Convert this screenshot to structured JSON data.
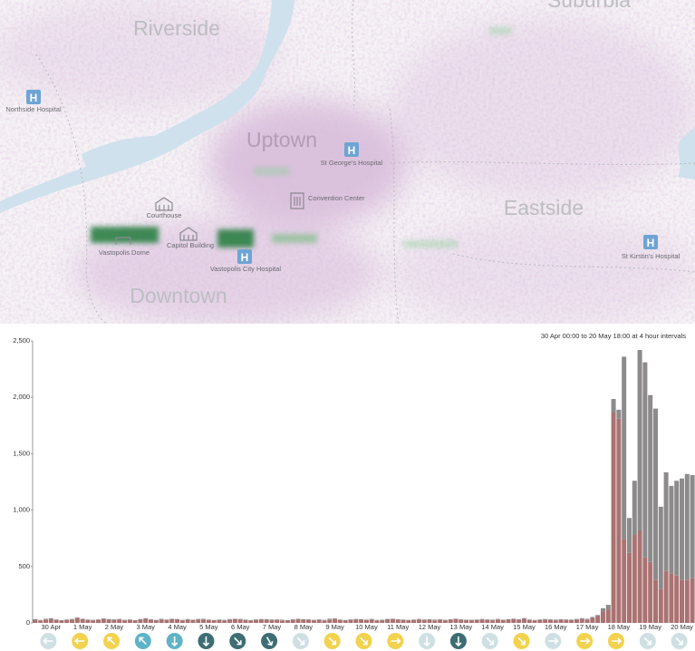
{
  "map": {
    "districts": [
      "Suburbia",
      "Riverside",
      "Uptown",
      "Eastside",
      "Downtown"
    ],
    "places": [
      "Northside Hospital",
      "St George's Hospital",
      "Convention Center",
      "Courthouse",
      "Vastopolis Dome",
      "Capitol Building",
      "Vastopolis City Hospital",
      "St Kirstin's Hospital"
    ]
  },
  "chart_data": {
    "type": "bar",
    "stacked": true,
    "annotation": "30 Apr 00:00 to 20 May 18:00 at 4 hour intervals",
    "categories": [
      null,
      null,
      null,
      "30 Apr",
      null,
      null,
      null,
      null,
      null,
      "1 May",
      null,
      null,
      null,
      null,
      null,
      "2 May",
      null,
      null,
      null,
      null,
      null,
      "3 May",
      null,
      null,
      null,
      null,
      null,
      "4 May",
      null,
      null,
      null,
      null,
      null,
      "5 May",
      null,
      null,
      null,
      null,
      null,
      "6 May",
      null,
      null,
      null,
      null,
      null,
      "7 May",
      null,
      null,
      null,
      null,
      null,
      "8 May",
      null,
      null,
      null,
      null,
      null,
      "9 May",
      null,
      null,
      null,
      null,
      null,
      "10 May",
      null,
      null,
      null,
      null,
      null,
      "11 May",
      null,
      null,
      null,
      null,
      null,
      "12 May",
      null,
      null,
      null,
      null,
      null,
      "13 May",
      null,
      null,
      null,
      null,
      null,
      "14 May",
      null,
      null,
      null,
      null,
      null,
      "15 May",
      null,
      null,
      null,
      null,
      null,
      "16 May",
      null,
      null,
      null,
      null,
      null,
      "17 May",
      null,
      null,
      null,
      null,
      null,
      "18 May",
      null,
      null,
      null,
      null,
      null,
      "19 May",
      null,
      null,
      null,
      null,
      null,
      "20 May",
      null,
      null
    ],
    "series": [
      {
        "color": "#aa7272",
        "values": [
          28,
          22,
          30,
          35,
          26,
          20,
          24,
          30,
          42,
          33,
          25,
          21,
          27,
          34,
          29,
          24,
          31,
          22,
          26,
          20,
          28,
          36,
          25,
          23,
          30,
          25,
          33,
          28,
          22,
          27,
          24,
          29,
          31,
          26,
          20,
          25,
          22,
          27,
          33,
          29,
          24,
          21,
          25,
          30,
          28,
          23,
          27,
          22,
          20,
          26,
          32,
          28,
          24,
          23,
          27,
          22,
          30,
          34,
          26,
          21,
          25,
          31,
          28,
          24,
          29,
          22,
          23,
          28,
          33,
          27,
          25,
          20,
          26,
          30,
          24,
          29,
          22,
          27,
          21,
          28,
          32,
          26,
          24,
          23,
          25,
          29,
          27,
          22,
          30,
          24,
          28,
          33,
          26,
          38,
          24,
          22,
          25,
          30,
          27,
          23,
          28,
          26,
          24,
          29,
          35,
          31,
          45,
          60,
          100,
          120,
          1865,
          1810,
          740,
          620,
          780,
          820,
          580,
          540,
          380,
          300,
          460,
          440,
          420,
          380,
          380,
          400
        ]
      },
      {
        "color": "#8c8a8a",
        "values": [
          5,
          4,
          6,
          7,
          5,
          4,
          6,
          5,
          7,
          4,
          5,
          6,
          4,
          6,
          5,
          7,
          4,
          5,
          5,
          4,
          6,
          5,
          7,
          4,
          6,
          5,
          4,
          6,
          5,
          7,
          4,
          6,
          5,
          4,
          6,
          5,
          5,
          7,
          4,
          6,
          5,
          4,
          6,
          4,
          5,
          7,
          4,
          6,
          5,
          6,
          4,
          5,
          7,
          4,
          4,
          5,
          7,
          6,
          4,
          5,
          6,
          4,
          5,
          5,
          6,
          4,
          5,
          7,
          4,
          6,
          5,
          6,
          4,
          5,
          6,
          4,
          7,
          5,
          6,
          4,
          5,
          6,
          4,
          5,
          5,
          6,
          4,
          7,
          5,
          4,
          4,
          5,
          7,
          5,
          6,
          4,
          6,
          4,
          5,
          6,
          4,
          5,
          5,
          6,
          7,
          5,
          8,
          10,
          30,
          40,
          120,
          80,
          1620,
          310,
          480,
          1600,
          1730,
          1480,
          1520,
          730,
          875,
          775,
          840,
          900,
          940,
          910
        ]
      }
    ],
    "ylim": [
      0,
      2500
    ],
    "yticks": [
      0,
      500,
      {
        "value": 1000,
        "label": "1,000"
      },
      {
        "value": 1500,
        "label": "1,500"
      },
      {
        "value": 2000,
        "label": "2,000"
      },
      {
        "value": 2500,
        "label": "2,500"
      }
    ],
    "grid": false,
    "wind": [
      {
        "color": "#cfe0e3",
        "angle": 270
      },
      {
        "color": "#f2d24e",
        "angle": 270
      },
      {
        "color": "#f2d24e",
        "angle": 315
      },
      {
        "color": "#5fb3c7",
        "angle": 315
      },
      {
        "color": "#5fb3c7",
        "angle": 180
      },
      {
        "color": "#3e6d74",
        "angle": 180
      },
      {
        "color": "#3e6d74",
        "angle": 135
      },
      {
        "color": "#3e6d74",
        "angle": 150
      },
      {
        "color": "#cfe0e3",
        "angle": 135
      },
      {
        "color": "#f2d24e",
        "angle": 135
      },
      {
        "color": "#f2d24e",
        "angle": 135
      },
      {
        "color": "#f2d24e",
        "angle": 90
      },
      {
        "color": "#cfe0e3",
        "angle": 180
      },
      {
        "color": "#3e6d74",
        "angle": 180
      },
      {
        "color": "#cfe0e3",
        "angle": 135
      },
      {
        "color": "#f2d24e",
        "angle": 135
      },
      {
        "color": "#cfe0e3",
        "angle": 90
      },
      {
        "color": "#f2d24e",
        "angle": 90
      },
      {
        "color": "#f2d24e",
        "angle": 90
      },
      {
        "color": "#cfe0e3",
        "angle": 135
      },
      {
        "color": "#cfe0e3",
        "angle": 135
      }
    ]
  }
}
